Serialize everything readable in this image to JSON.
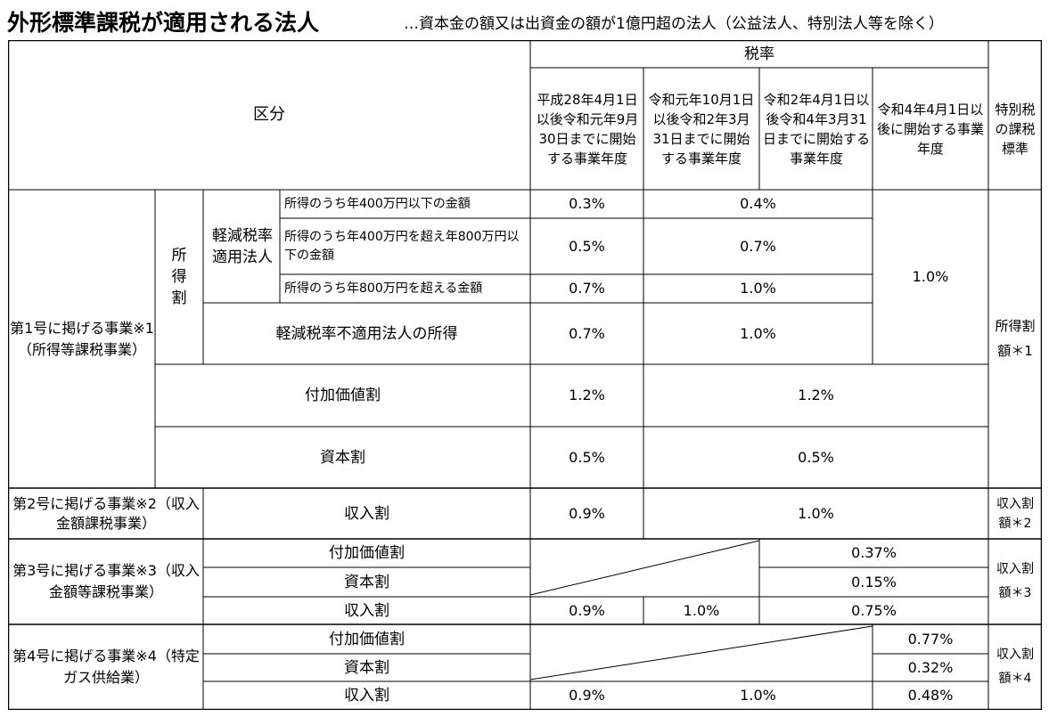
{
  "title": "外形標準課税が適用される法人",
  "subtitle": "…資本金の額又は出資金の額が1億円超の法人（公益法人、特別法人等を除く）",
  "header": {
    "kubun": "区分",
    "zeiritsu": "税率",
    "period1": "平成28年4月1日以後令和元年9月30日までに開始する事業年度",
    "period2": "令和元年10月1日以後令和2年3月31日までに開始する事業年度",
    "period3": "令和2年4月1日以後令和4年3月31日までに開始する事業年度",
    "period4": "令和4年4月1日以後に開始する事業年度",
    "tokubetsu": "特別税の課税標準"
  },
  "group1": {
    "label": "第1号に掲げる事業※1（所得等課税事業）",
    "shotoku_wari": "所得割",
    "keigen": "軽減税率適用法人",
    "row1_label": "所得のうち年400万円以下の金額",
    "row1_v1": "0.3%",
    "row1_v2": "0.4%",
    "row2_label": "所得のうち年400万円を超え年800万円以下の金額",
    "row2_v1": "0.5%",
    "row2_v2": "0.7%",
    "row3_label": "所得のうち年800万円を超える金額",
    "row3_v1": "0.7%",
    "row3_v2": "1.0%",
    "shotoku_p4": "1.0%",
    "fuketsu_label": "軽減税率不適用法人の所得",
    "fuketsu_v1": "0.7%",
    "fuketsu_v2": "1.0%",
    "fuka_label": "付加価値割",
    "fuka_v1": "1.2%",
    "fuka_v2": "1.2%",
    "shihon_label": "資本割",
    "shihon_v1": "0.5%",
    "shihon_v2": "0.5%",
    "tokubetsu": "所得割額＊1"
  },
  "group2": {
    "label": "第2号に掲げる事業※2（収入金額課税事業）",
    "shunyu_label": "収入割",
    "v1": "0.9%",
    "v2": "1.0%",
    "tokubetsu": "収入割額＊2"
  },
  "group3": {
    "label": "第3号に掲げる事業※3（収入金額等課税事業）",
    "fuka_label": "付加価値割",
    "fuka_v": "0.37%",
    "shihon_label": "資本割",
    "shihon_v": "0.15%",
    "shunyu_label": "収入割",
    "shunyu_v1": "0.9%",
    "shunyu_v2": "1.0%",
    "shunyu_v3": "0.75%",
    "tokubetsu": "収入割額＊3"
  },
  "group4": {
    "label": "第4号に掲げる事業※4（特定ガス供給業）",
    "fuka_label": "付加価値割",
    "fuka_v": "0.77%",
    "shihon_label": "資本割",
    "shihon_v": "0.32%",
    "shunyu_label": "収入割",
    "shunyu_v1": "0.9%",
    "shunyu_v2": "1.0%",
    "shunyu_v3": "0.48%",
    "tokubetsu": "収入割額＊4"
  }
}
